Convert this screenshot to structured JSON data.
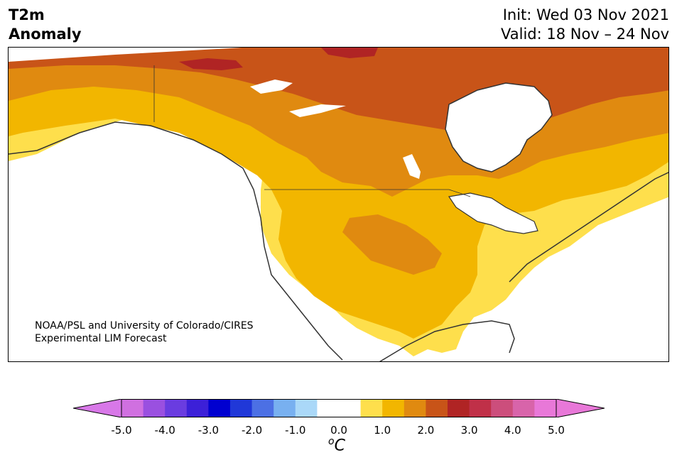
{
  "header": {
    "variable": "T2m",
    "product": "Anomaly",
    "init": "Init: Wed 03 Nov 2021",
    "valid": "Valid: 18 Nov – 24 Nov"
  },
  "credit": {
    "line1": "NOAA/PSL and University of Colorado/CIRES",
    "line2": "Experimental LIM Forecast"
  },
  "colorbar": {
    "unit_base": "C",
    "unit_sup": "o",
    "ticks": [
      "-5.0",
      "-4.0",
      "-3.0",
      "-2.0",
      "-1.0",
      "0.0",
      "1.0",
      "2.0",
      "3.0",
      "4.0",
      "5.0"
    ],
    "colors": [
      "#d070e0",
      "#9a50e0",
      "#6a3ce0",
      "#3c20d8",
      "#0000d0",
      "#2038d8",
      "#4c70e4",
      "#78b0f0",
      "#aad8f8",
      "#ffffff",
      "#ffffff",
      "#fedf4c",
      "#f2b600",
      "#e08a10",
      "#c85418",
      "#b02424",
      "#c03048",
      "#cc4e7c",
      "#d864aa",
      "#e878d8"
    ],
    "under_color": "#d878e8",
    "over_color": "#e878d8"
  },
  "map": {
    "colors": {
      "land_neutral": "#ffffff",
      "level1": "#fedf4c",
      "level2": "#f2b600",
      "level3": "#e08a10",
      "level4": "#c85418",
      "level5": "#b02424",
      "coast": "#333333"
    }
  }
}
